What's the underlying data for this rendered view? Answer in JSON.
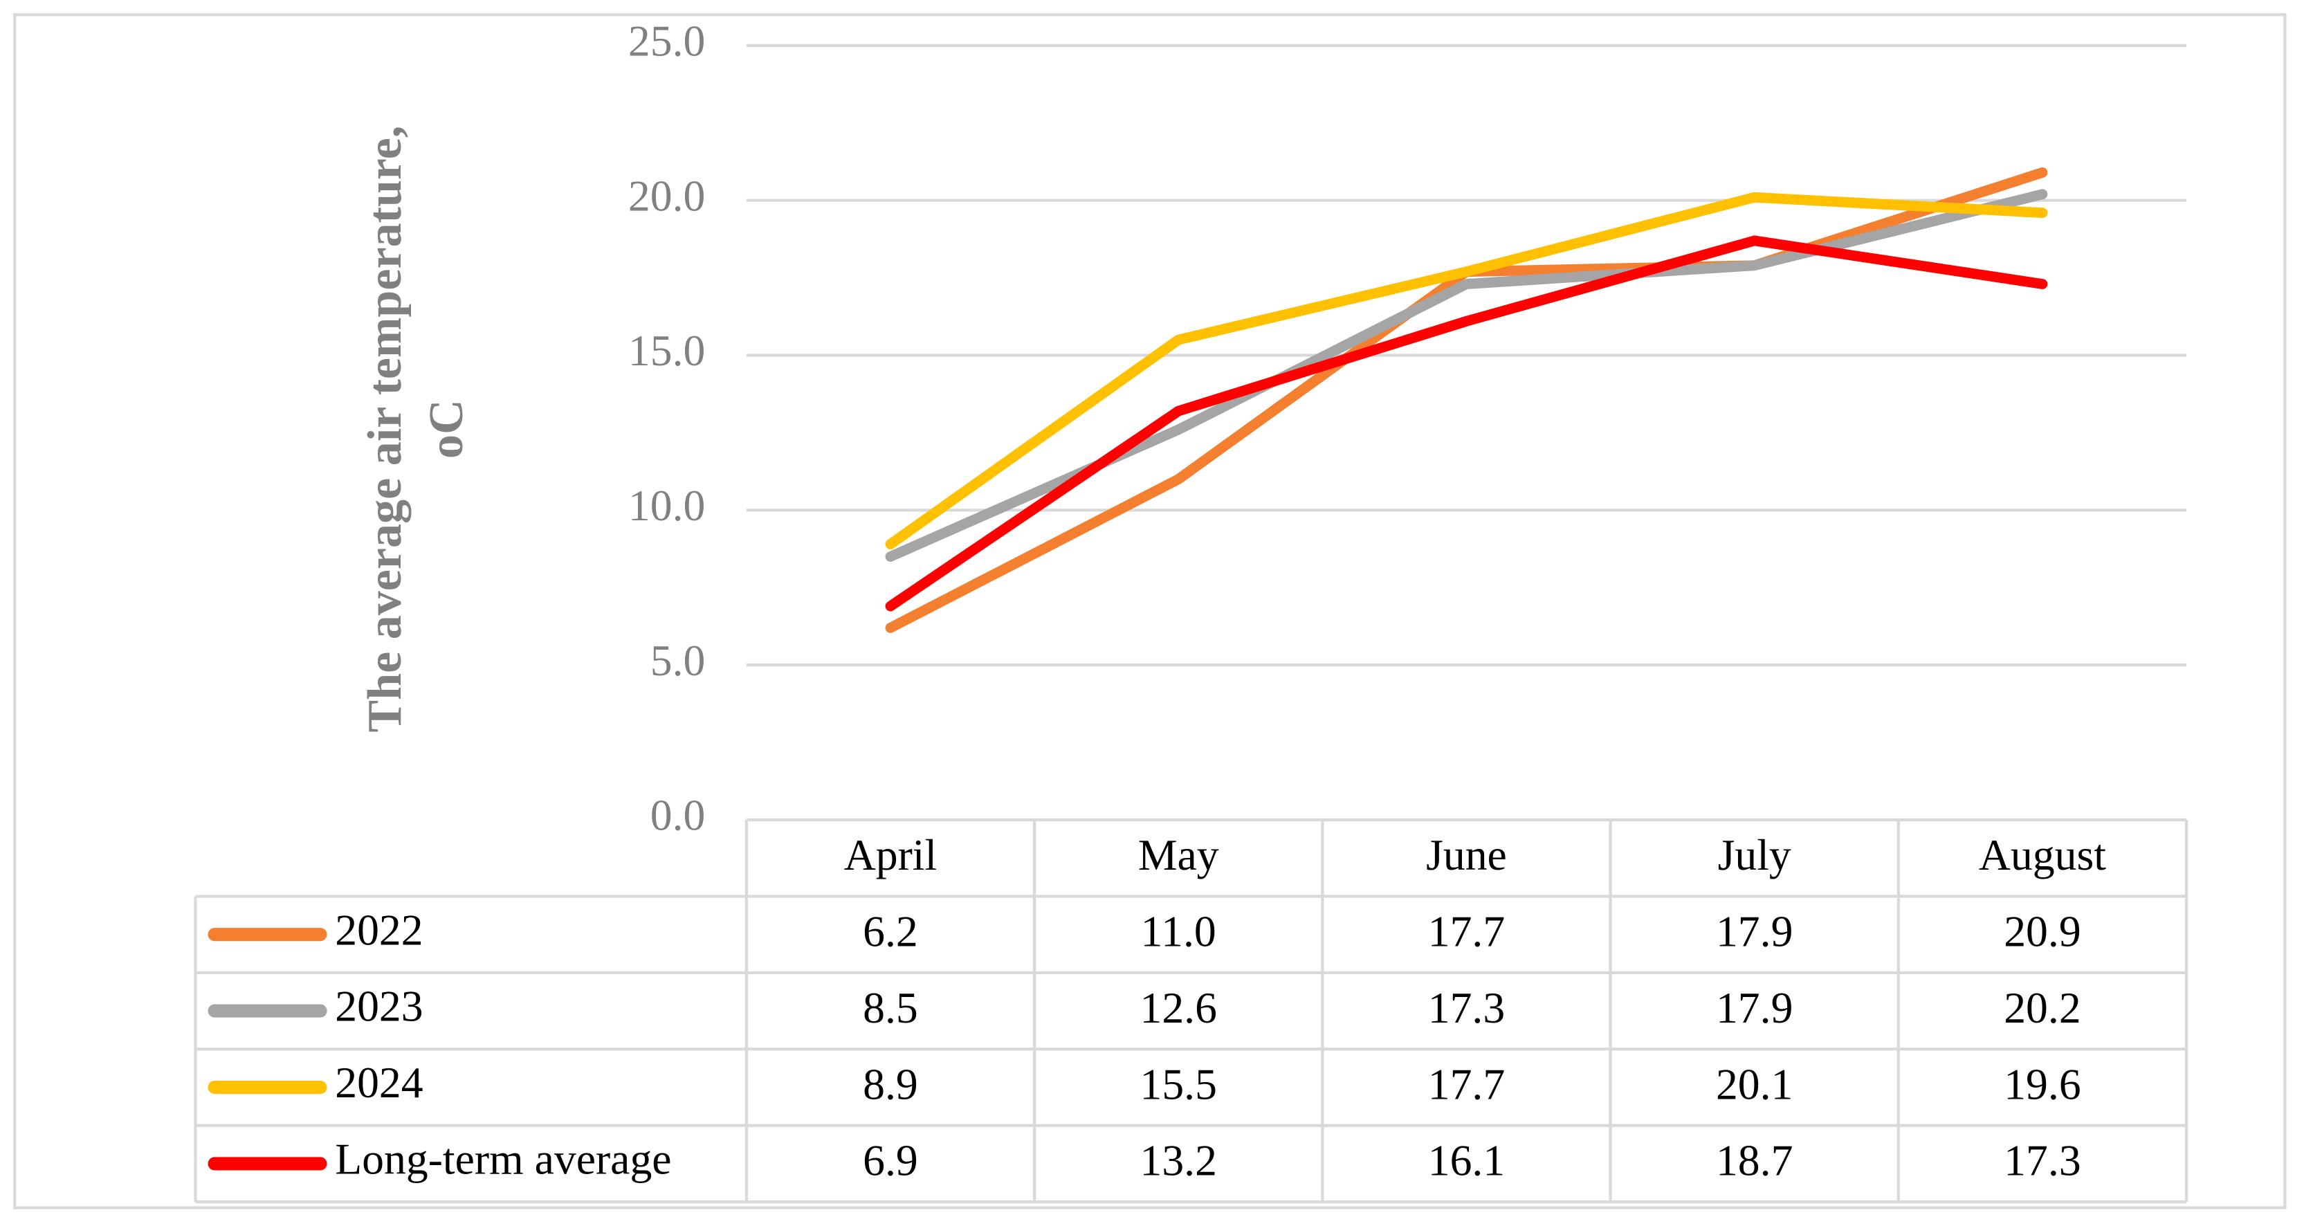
{
  "chart_data": {
    "type": "line",
    "y_label": [
      "The average air temperature,",
      "oC"
    ],
    "categories": [
      "April",
      "May",
      "June",
      "July",
      "August"
    ],
    "series": [
      {
        "name": "2022",
        "color": "#F4802F",
        "values": [
          6.2,
          11.0,
          17.7,
          17.9,
          20.9
        ],
        "value_labels": [
          "6.2",
          "11.0",
          "17.7",
          "17.9",
          "20.9"
        ]
      },
      {
        "name": "2023",
        "color": "#A5A5A5",
        "values": [
          8.5,
          12.6,
          17.3,
          17.9,
          20.2
        ],
        "value_labels": [
          "8.5",
          "12.6",
          "17.3",
          "17.9",
          "20.2"
        ]
      },
      {
        "name": "2024",
        "color": "#FFC000",
        "values": [
          8.9,
          15.5,
          17.7,
          20.1,
          19.6
        ],
        "value_labels": [
          "8.9",
          "15.5",
          "17.7",
          "20.1",
          "19.6"
        ]
      },
      {
        "name": "Long-term average",
        "color": "#FF0000",
        "values": [
          6.9,
          13.2,
          16.1,
          18.7,
          17.3
        ],
        "value_labels": [
          "6.9",
          "13.2",
          "16.1",
          "18.7",
          "17.3"
        ]
      }
    ],
    "ylim": [
      0,
      25
    ],
    "yticks": [
      {
        "value": 0,
        "label": "0.0"
      },
      {
        "value": 5,
        "label": "5.0"
      },
      {
        "value": 10,
        "label": "10.0"
      },
      {
        "value": 15,
        "label": "15.0"
      },
      {
        "value": 20,
        "label": "20.0"
      },
      {
        "value": 25,
        "label": "25.0"
      }
    ],
    "grid": true
  }
}
